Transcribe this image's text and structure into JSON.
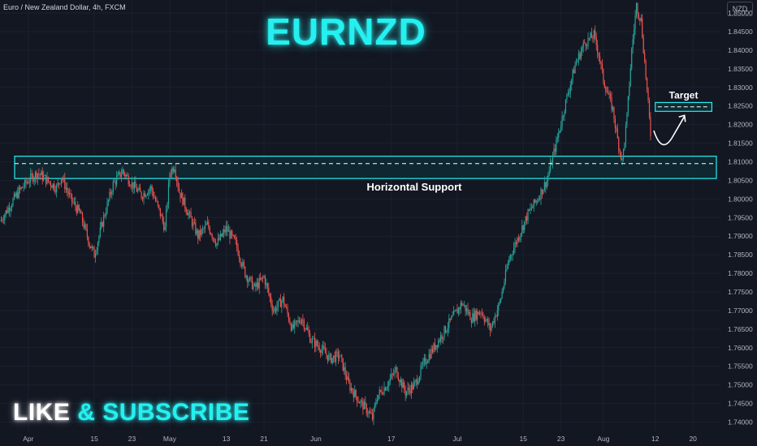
{
  "header": {
    "symbol_text": "Euro / New Zealand Dollar, 4h, FXCM",
    "title": "EURNZD",
    "currency": "NZD",
    "like_text": "LIKE",
    "amp_text": "&",
    "subscribe_text": "SUBSCRIBE"
  },
  "colors": {
    "background": "#131722",
    "up": "#26a69a",
    "down": "#ef5350",
    "accent": "#25f0f0",
    "zone_fill": "#0f2a33",
    "axis_text": "#b2b5be"
  },
  "chart_data": {
    "type": "candlestick",
    "ylim": [
      1.7375,
      1.8535
    ],
    "y_ticks": [
      "1.74000",
      "1.74500",
      "1.75000",
      "1.75500",
      "1.76000",
      "1.76500",
      "1.77000",
      "1.77500",
      "1.78000",
      "1.78500",
      "1.79000",
      "1.79500",
      "1.80000",
      "1.80500",
      "1.81000",
      "1.81500",
      "1.82000",
      "1.82500",
      "1.83000",
      "1.83500",
      "1.84000",
      "1.84500",
      "1.85000"
    ],
    "x_ticks": [
      {
        "label": "Apr",
        "day": 0
      },
      {
        "label": "15",
        "day": 14
      },
      {
        "label": "23",
        "day": 22
      },
      {
        "label": "May",
        "day": 30
      },
      {
        "label": "13",
        "day": 42
      },
      {
        "label": "21",
        "day": 50
      },
      {
        "label": "Jun",
        "day": 61
      },
      {
        "label": "17",
        "day": 77
      },
      {
        "label": "Jul",
        "day": 91
      },
      {
        "label": "15",
        "day": 105
      },
      {
        "label": "23",
        "day": 113
      },
      {
        "label": "Aug",
        "day": 122
      },
      {
        "label": "12",
        "day": 133
      },
      {
        "label": "20",
        "day": 141
      }
    ],
    "x_range_days": [
      -6,
      147
    ],
    "close_path": [
      [
        -6,
        1.794
      ],
      [
        -4,
        1.798
      ],
      [
        -2,
        1.802
      ],
      [
        0,
        1.805
      ],
      [
        2,
        1.807
      ],
      [
        4,
        1.805
      ],
      [
        6,
        1.803
      ],
      [
        7,
        1.806
      ],
      [
        9,
        1.8
      ],
      [
        11,
        1.796
      ],
      [
        13,
        1.788
      ],
      [
        14,
        1.785
      ],
      [
        16,
        1.795
      ],
      [
        18,
        1.804
      ],
      [
        20,
        1.8075
      ],
      [
        22,
        1.804
      ],
      [
        24,
        1.801
      ],
      [
        26,
        1.803
      ],
      [
        28,
        1.796
      ],
      [
        29,
        1.792
      ],
      [
        30,
        1.807
      ],
      [
        31,
        1.809
      ],
      [
        32,
        1.802
      ],
      [
        34,
        1.796
      ],
      [
        36,
        1.79
      ],
      [
        38,
        1.793
      ],
      [
        40,
        1.788
      ],
      [
        42,
        1.792
      ],
      [
        44,
        1.788
      ],
      [
        46,
        1.78
      ],
      [
        48,
        1.776
      ],
      [
        50,
        1.779
      ],
      [
        52,
        1.77
      ],
      [
        54,
        1.773
      ],
      [
        56,
        1.765
      ],
      [
        58,
        1.768
      ],
      [
        60,
        1.762
      ],
      [
        62,
        1.76
      ],
      [
        64,
        1.757
      ],
      [
        66,
        1.758
      ],
      [
        68,
        1.75
      ],
      [
        70,
        1.746
      ],
      [
        72,
        1.743
      ],
      [
        73,
        1.741
      ],
      [
        74,
        1.747
      ],
      [
        76,
        1.75
      ],
      [
        78,
        1.754
      ],
      [
        80,
        1.748
      ],
      [
        82,
        1.75
      ],
      [
        84,
        1.756
      ],
      [
        86,
        1.76
      ],
      [
        88,
        1.764
      ],
      [
        90,
        1.768
      ],
      [
        92,
        1.772
      ],
      [
        94,
        1.768
      ],
      [
        96,
        1.77
      ],
      [
        98,
        1.765
      ],
      [
        100,
        1.772
      ],
      [
        102,
        1.784
      ],
      [
        104,
        1.79
      ],
      [
        106,
        1.796
      ],
      [
        108,
        1.8
      ],
      [
        110,
        1.805
      ],
      [
        112,
        1.815
      ],
      [
        114,
        1.826
      ],
      [
        116,
        1.836
      ],
      [
        118,
        1.842
      ],
      [
        120,
        1.844
      ],
      [
        121,
        1.839
      ],
      [
        122,
        1.832
      ],
      [
        124,
        1.824
      ],
      [
        125,
        1.816
      ],
      [
        126,
        1.81
      ],
      [
        127,
        1.822
      ],
      [
        128,
        1.84
      ],
      [
        129,
        1.852
      ],
      [
        130,
        1.848
      ],
      [
        131,
        1.833
      ],
      [
        132,
        1.8175
      ]
    ],
    "support_zone": {
      "low": 1.8055,
      "high": 1.8115,
      "level": 1.80951
    },
    "target_zone": {
      "low": 1.824,
      "high": 1.8255,
      "level": 1.82477,
      "from_day": 133,
      "to_day": 145
    },
    "price_labels": {
      "current": "1.81745",
      "current_value": 1.81745,
      "support": "1.80951",
      "support_value": 1.80951,
      "target": "1.82477",
      "target_value": 1.82477
    },
    "annotations": {
      "target": "Target",
      "support": "Horizontal Support"
    }
  }
}
